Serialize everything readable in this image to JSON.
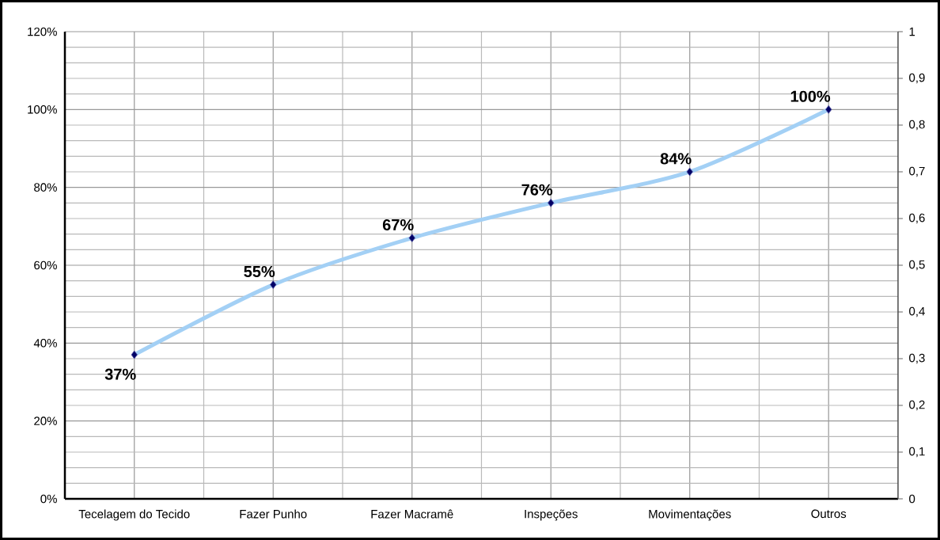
{
  "chart_data": {
    "type": "line",
    "categories": [
      "Tecelagem do Tecido",
      "Fazer Punho",
      "Fazer Macramê",
      "Inspeções",
      "Movimentações",
      "Outros"
    ],
    "series": [
      {
        "color": "#a3d0f5",
        "values": [
          37,
          55,
          67,
          76,
          84,
          100
        ],
        "value_labels": [
          "37%",
          "55%",
          "67%",
          "76%",
          "84%",
          "100%"
        ]
      }
    ],
    "ylim": [
      0,
      120
    ],
    "yticks": [
      {
        "value": 0,
        "label": "0%"
      },
      {
        "value": 20,
        "label": "20%"
      },
      {
        "value": 40,
        "label": "40%"
      },
      {
        "value": 60,
        "label": "60%"
      },
      {
        "value": 80,
        "label": "80%"
      },
      {
        "value": 100,
        "label": "100%"
      },
      {
        "value": 120,
        "label": "120%"
      }
    ],
    "y2lim": [
      0,
      1
    ],
    "y2ticks": [
      0,
      {
        "value": 0.1,
        "label": "0,1"
      },
      {
        "value": 0.2,
        "label": "0,2"
      },
      {
        "value": 0.3,
        "label": "0,3"
      },
      {
        "value": 0.4,
        "label": "0,4"
      },
      {
        "value": 0.5,
        "label": "0,5"
      },
      {
        "value": 0.6,
        "label": "0,6"
      },
      {
        "value": 0.7,
        "label": "0,7"
      },
      {
        "value": 0.8,
        "label": "0,8"
      },
      {
        "value": 0.9,
        "label": "0,9"
      },
      1
    ],
    "grid": true,
    "marker": "diamond",
    "line_style": "solid"
  }
}
